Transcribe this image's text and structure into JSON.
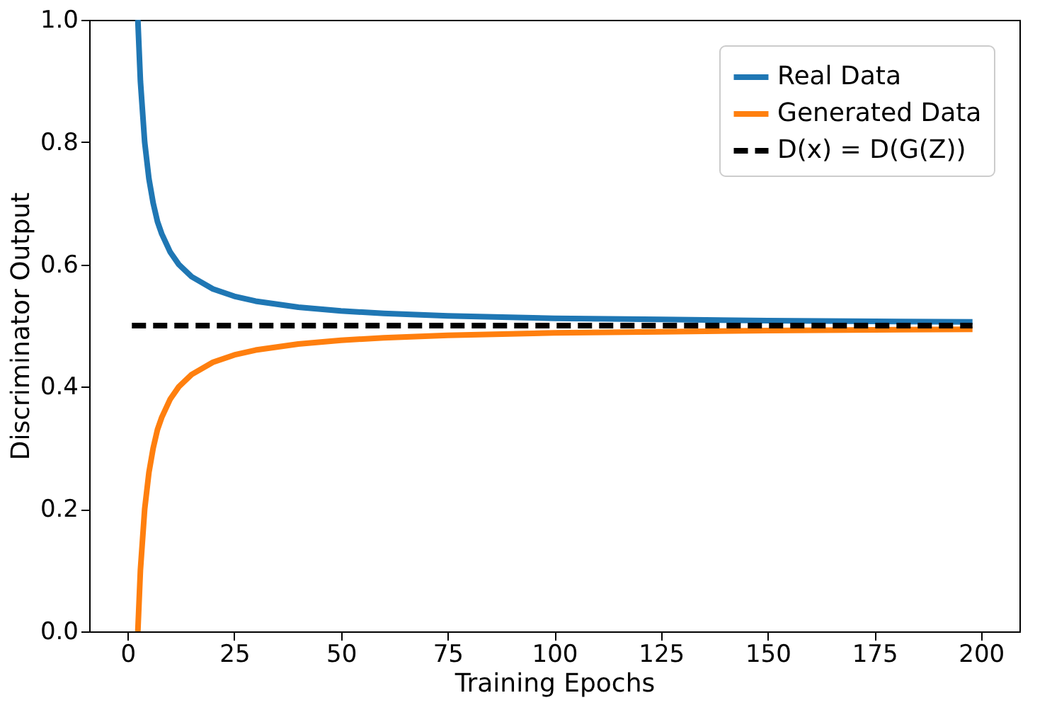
{
  "chart_data": {
    "type": "line",
    "xlabel": "Training Epochs",
    "ylabel": "Discriminator Output",
    "xlim": [
      -9,
      209
    ],
    "ylim": [
      0,
      1
    ],
    "xticks": [
      0,
      25,
      50,
      75,
      100,
      125,
      150,
      175,
      200
    ],
    "yticks": [
      {
        "value": 0,
        "label": "0.0"
      },
      0.2,
      0.4,
      0.6,
      0.8,
      {
        "value": 1,
        "label": "1.0"
      }
    ],
    "legend": "top right",
    "grid": false,
    "series": [
      {
        "name": "Real Data",
        "color": "#1f77b4",
        "line_style": "solid",
        "x": [
          2.4,
          3,
          4,
          5,
          6,
          7,
          8,
          10,
          12,
          15,
          20,
          25,
          30,
          40,
          50,
          60,
          75,
          100,
          125,
          150,
          175,
          198
        ],
        "values": [
          1.0,
          0.9,
          0.8,
          0.74,
          0.7,
          0.67,
          0.65,
          0.62,
          0.6,
          0.58,
          0.56,
          0.548,
          0.54,
          0.53,
          0.524,
          0.52,
          0.516,
          0.512,
          0.51,
          0.508,
          0.507,
          0.506
        ]
      },
      {
        "name": "Generated Data",
        "color": "#ff7f0e",
        "line_style": "solid",
        "x": [
          2.4,
          3,
          4,
          5,
          6,
          7,
          8,
          10,
          12,
          15,
          20,
          25,
          30,
          40,
          50,
          60,
          75,
          100,
          125,
          150,
          175,
          198
        ],
        "values": [
          0.0,
          0.1,
          0.2,
          0.26,
          0.3,
          0.33,
          0.35,
          0.38,
          0.4,
          0.42,
          0.44,
          0.452,
          0.46,
          0.47,
          0.476,
          0.48,
          0.484,
          0.488,
          0.49,
          0.492,
          0.493,
          0.494
        ]
      },
      {
        "name": "D(x) = D(G(Z))",
        "color": "#000000",
        "line_style": "dashed",
        "x": [
          1,
          198
        ],
        "values": [
          0.5,
          0.5
        ]
      }
    ]
  }
}
